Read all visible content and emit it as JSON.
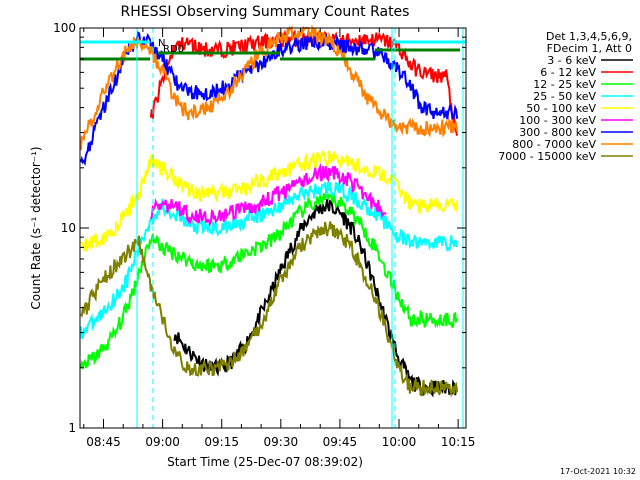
{
  "chart_data": {
    "type": "line",
    "title": "RHESSI Observing Summary Count Rates",
    "xlabel": "Start Time (25-Dec-07 08:39:02)",
    "ylabel": "Count Rate (s⁻¹ detector⁻¹)",
    "y_scale": "log",
    "xlim": [
      "08:39:02",
      "10:17:00"
    ],
    "ylim": [
      1,
      100
    ],
    "x_tick_labels": [
      "08:45",
      "09:00",
      "09:15",
      "09:30",
      "09:45",
      "10:00",
      "10:15"
    ],
    "y_tick_labels": [
      "1",
      "10",
      "100"
    ],
    "legend": {
      "placement": "right",
      "header": [
        "Det 1,3,4,5,6,9,",
        "FDecim 1, Att 0"
      ]
    },
    "flag_labels": [
      "N",
      "RD0"
    ],
    "footer": "17-Oct-2021 10:32",
    "x": [
      "08:39",
      "08:42",
      "08:45",
      "08:48",
      "08:51",
      "08:54",
      "08:57",
      "09:00",
      "09:03",
      "09:06",
      "09:09",
      "09:12",
      "09:15",
      "09:18",
      "09:21",
      "09:24",
      "09:27",
      "09:30",
      "09:33",
      "09:36",
      "09:39",
      "09:42",
      "09:45",
      "09:48",
      "09:51",
      "09:54",
      "09:57",
      "10:00",
      "10:03",
      "10:06",
      "10:09",
      "10:12",
      "10:15"
    ],
    "series": [
      {
        "name": "3 - 6 keV",
        "color": "#000000",
        "values": [
          null,
          null,
          null,
          null,
          null,
          null,
          null,
          null,
          3.0,
          2.5,
          2.2,
          2.0,
          2.0,
          2.2,
          2.6,
          3.4,
          4.5,
          6.2,
          8.3,
          10.5,
          12.3,
          13.0,
          12.0,
          10.0,
          7.5,
          5.0,
          3.3,
          2.2,
          1.7,
          1.6,
          1.6,
          1.6,
          1.6
        ]
      },
      {
        "name": "6 - 12 keV",
        "color": "#ff0000",
        "values": [
          null,
          null,
          null,
          null,
          null,
          null,
          35.0,
          55.0,
          80.0,
          85.0,
          80.0,
          78.0,
          78.0,
          80.0,
          82.0,
          84.0,
          86.0,
          88.0,
          88.0,
          88.0,
          88.0,
          87.0,
          86.0,
          87.0,
          88.0,
          88.0,
          86.0,
          80.0,
          65.0,
          60.0,
          58.0,
          58.0,
          25.0
        ]
      },
      {
        "name": "12 - 25 keV",
        "color": "#00ff00",
        "values": [
          2.0,
          2.2,
          2.5,
          3.0,
          4.0,
          6.0,
          9.0,
          8.0,
          7.5,
          7.0,
          6.5,
          6.5,
          6.5,
          7.0,
          7.5,
          8.0,
          8.5,
          9.5,
          11.0,
          12.5,
          13.5,
          14.0,
          13.5,
          12.0,
          10.0,
          8.0,
          6.0,
          4.5,
          3.5,
          3.5,
          3.5,
          3.5,
          3.5
        ]
      },
      {
        "name": "25 - 50 keV",
        "color": "#00ffff",
        "values": [
          3.0,
          3.3,
          3.8,
          4.5,
          5.5,
          8.0,
          11.0,
          13.0,
          12.0,
          10.5,
          10.0,
          10.0,
          10.0,
          10.5,
          11.0,
          11.5,
          12.0,
          13.0,
          14.0,
          15.0,
          15.5,
          16.0,
          15.5,
          14.5,
          13.0,
          12.0,
          10.5,
          9.0,
          8.5,
          8.5,
          8.5,
          8.5,
          8.5
        ]
      },
      {
        "name": "50 - 100 keV",
        "color": "#ffff00",
        "values": [
          8.0,
          8.5,
          9.0,
          10.0,
          12.0,
          15.0,
          22.0,
          20.0,
          18.0,
          16.0,
          15.0,
          15.0,
          15.0,
          15.5,
          16.0,
          17.0,
          18.0,
          19.0,
          20.0,
          21.0,
          22.0,
          22.5,
          22.0,
          21.0,
          20.0,
          19.0,
          18.0,
          16.0,
          13.0,
          13.0,
          13.0,
          13.0,
          13.0
        ]
      },
      {
        "name": "100 - 300 keV",
        "color": "#ff00ff",
        "values": [
          null,
          null,
          null,
          null,
          null,
          null,
          12.0,
          13.0,
          13.0,
          12.0,
          11.5,
          11.5,
          11.5,
          12.0,
          12.5,
          13.0,
          14.0,
          15.0,
          16.0,
          17.5,
          18.5,
          19.0,
          18.5,
          17.0,
          15.0,
          13.0,
          12.0,
          null,
          null,
          null,
          null,
          null,
          null
        ]
      },
      {
        "name": "300 - 800 keV",
        "color": "#0000ff",
        "values": [
          20.0,
          28.0,
          40.0,
          55.0,
          75.0,
          90.0,
          85.0,
          70.0,
          55.0,
          48.0,
          48.0,
          48.0,
          50.0,
          55.0,
          60.0,
          65.0,
          72.0,
          78.0,
          82.0,
          85.0,
          85.0,
          84.0,
          82.0,
          80.0,
          78.0,
          76.0,
          70.0,
          62.0,
          50.0,
          40.0,
          38.0,
          38.0,
          38.0
        ]
      },
      {
        "name": "800 - 7000 keV",
        "color": "#ff8000",
        "values": [
          25.0,
          35.0,
          48.0,
          62.0,
          78.0,
          88.0,
          78.0,
          60.0,
          45.0,
          38.0,
          38.0,
          40.0,
          45.0,
          52.0,
          62.0,
          72.0,
          82.0,
          90.0,
          95.0,
          96.0,
          94.0,
          88.0,
          75.0,
          60.0,
          48.0,
          40.0,
          35.0,
          33.0,
          32.0,
          32.0,
          32.0,
          32.0,
          32.0
        ]
      },
      {
        "name": "7000 - 15000 keV",
        "color": "#808000",
        "values": [
          3.5,
          4.5,
          5.5,
          6.5,
          7.5,
          8.5,
          5.0,
          3.5,
          2.5,
          2.0,
          2.0,
          2.0,
          2.0,
          2.2,
          2.5,
          3.0,
          4.0,
          5.5,
          7.0,
          8.5,
          9.5,
          10.0,
          9.5,
          8.0,
          6.0,
          4.5,
          3.0,
          2.0,
          1.6,
          1.6,
          1.6,
          1.6,
          1.6
        ]
      }
    ]
  }
}
